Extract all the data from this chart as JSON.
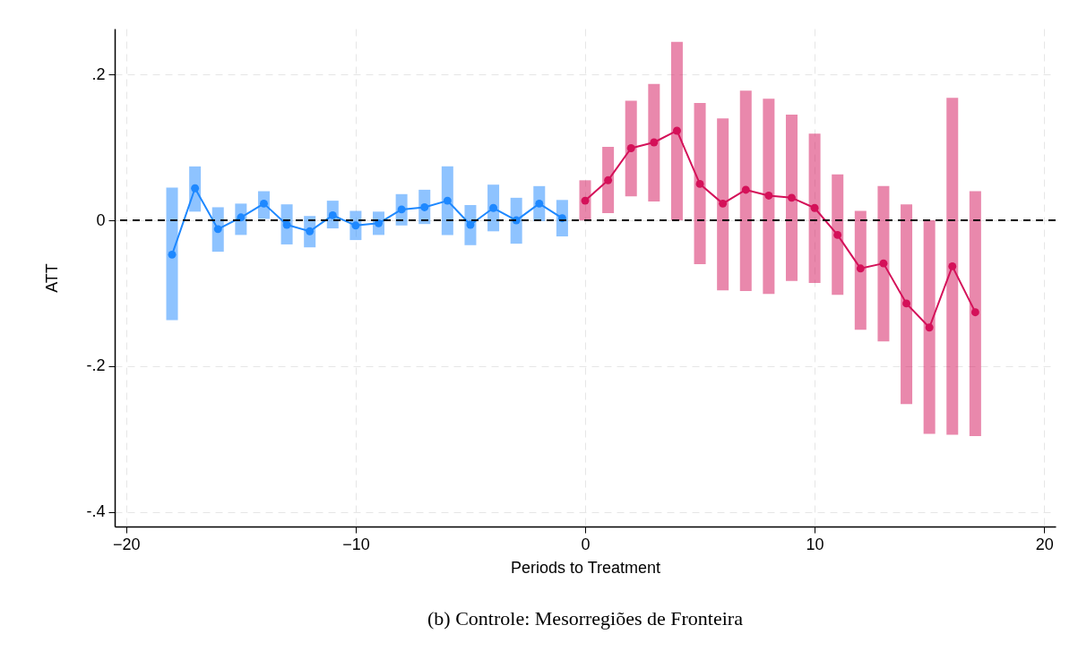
{
  "chart_data": {
    "type": "line",
    "xlabel": "Periods to Treatment",
    "ylabel": "ATT",
    "annotations": [
      "(b) Controle: Mesorregiões de Fronteira"
    ],
    "xlim": [
      -20.5,
      20.5
    ],
    "xticks": [
      -20,
      -10,
      0,
      10,
      20
    ],
    "ylim": [
      -0.42,
      0.263
    ],
    "yticks": [
      {
        "value": 0.2,
        "label": ".2"
      },
      {
        "value": 0,
        "label": "0"
      },
      {
        "value": -0.2,
        "label": "-.2"
      },
      {
        "value": -0.4,
        "label": "-.4"
      }
    ],
    "grid": true,
    "marker": "circle",
    "line_style": "solid",
    "ref_lines": [
      {
        "axis": "y",
        "value": 0,
        "color": "#000000",
        "line_style": "dashed"
      }
    ],
    "series": [
      {
        "color": "#1e88ff",
        "x": [
          -18,
          -17,
          -16,
          -15,
          -14,
          -13,
          -12,
          -11,
          -10,
          -9,
          -8,
          -7,
          -6,
          -5,
          -4,
          -3,
          -2,
          -1
        ],
        "values": [
          -0.047,
          0.044,
          -0.012,
          0.004,
          0.023,
          -0.006,
          -0.015,
          0.007,
          -0.007,
          -0.004,
          0.015,
          0.018,
          0.027,
          -0.006,
          0.017,
          0.0,
          0.023,
          0.003
        ],
        "errors": [
          [
            -0.137,
            0.045
          ],
          [
            0.012,
            0.074
          ],
          [
            -0.043,
            0.018
          ],
          [
            -0.02,
            0.023
          ],
          [
            0.002,
            0.04
          ],
          [
            -0.033,
            0.022
          ],
          [
            -0.037,
            0.006
          ],
          [
            -0.011,
            0.027
          ],
          [
            -0.027,
            0.013
          ],
          [
            -0.02,
            0.012
          ],
          [
            -0.007,
            0.036
          ],
          [
            -0.005,
            0.042
          ],
          [
            -0.02,
            0.074
          ],
          [
            -0.034,
            0.021
          ],
          [
            -0.015,
            0.049
          ],
          [
            -0.032,
            0.031
          ],
          [
            -0.001,
            0.047
          ],
          [
            -0.022,
            0.028
          ]
        ]
      },
      {
        "color": "#d41159",
        "x": [
          0,
          1,
          2,
          3,
          4,
          5,
          6,
          7,
          8,
          9,
          10,
          11,
          12,
          13,
          14,
          15,
          16,
          17
        ],
        "values": [
          0.027,
          0.055,
          0.099,
          0.107,
          0.123,
          0.05,
          0.023,
          0.042,
          0.034,
          0.031,
          0.017,
          -0.02,
          -0.066,
          -0.059,
          -0.114,
          -0.147,
          -0.063,
          -0.126
        ],
        "errors": [
          [
            0.0,
            0.055
          ],
          [
            0.01,
            0.101
          ],
          [
            0.033,
            0.164
          ],
          [
            0.026,
            0.187
          ],
          [
            0.0,
            0.245
          ],
          [
            -0.06,
            0.161
          ],
          [
            -0.096,
            0.14
          ],
          [
            -0.097,
            0.178
          ],
          [
            -0.101,
            0.167
          ],
          [
            -0.083,
            0.145
          ],
          [
            -0.086,
            0.119
          ],
          [
            -0.102,
            0.063
          ],
          [
            -0.15,
            0.013
          ],
          [
            -0.166,
            0.047
          ],
          [
            -0.252,
            0.022
          ],
          [
            -0.293,
            0.0
          ],
          [
            -0.294,
            0.168
          ],
          [
            -0.296,
            0.04
          ]
        ]
      }
    ]
  }
}
